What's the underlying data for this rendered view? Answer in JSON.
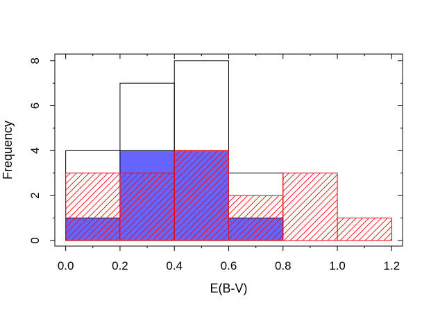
{
  "chart_data": {
    "type": "bar",
    "subtype": "overlaid-histogram",
    "xlabel": "E(B-V)",
    "ylabel": "Frequency",
    "xlim": [
      -0.04,
      1.24
    ],
    "ylim": [
      -0.25,
      8.3
    ],
    "xticks": [
      "0.0",
      "0.2",
      "0.4",
      "0.6",
      "0.8",
      "1.0",
      "1.2"
    ],
    "yticks": [
      "0",
      "2",
      "4",
      "6",
      "8"
    ],
    "grid": false,
    "legend": "none",
    "bin_edges": [
      0.0,
      0.2,
      0.4,
      0.6,
      0.8,
      1.0,
      1.2
    ],
    "series": [
      {
        "style": "outline",
        "color": "#000000",
        "bins": [
          [
            0.0,
            0.2,
            4
          ],
          [
            0.2,
            0.4,
            7
          ],
          [
            0.4,
            0.6,
            8
          ],
          [
            0.6,
            0.8,
            3
          ]
        ]
      },
      {
        "style": "filled",
        "color": "#6666ff",
        "bins": [
          [
            0.0,
            0.2,
            1
          ],
          [
            0.2,
            0.4,
            4
          ],
          [
            0.4,
            0.6,
            4
          ],
          [
            0.6,
            0.8,
            1
          ]
        ]
      },
      {
        "style": "hatched",
        "color": "#ff0000",
        "bins": [
          [
            0.0,
            0.2,
            3
          ],
          [
            0.2,
            0.4,
            3
          ],
          [
            0.4,
            0.6,
            4
          ],
          [
            0.6,
            0.8,
            2
          ],
          [
            0.8,
            1.0,
            3
          ],
          [
            1.0,
            1.2,
            1
          ]
        ]
      }
    ]
  }
}
